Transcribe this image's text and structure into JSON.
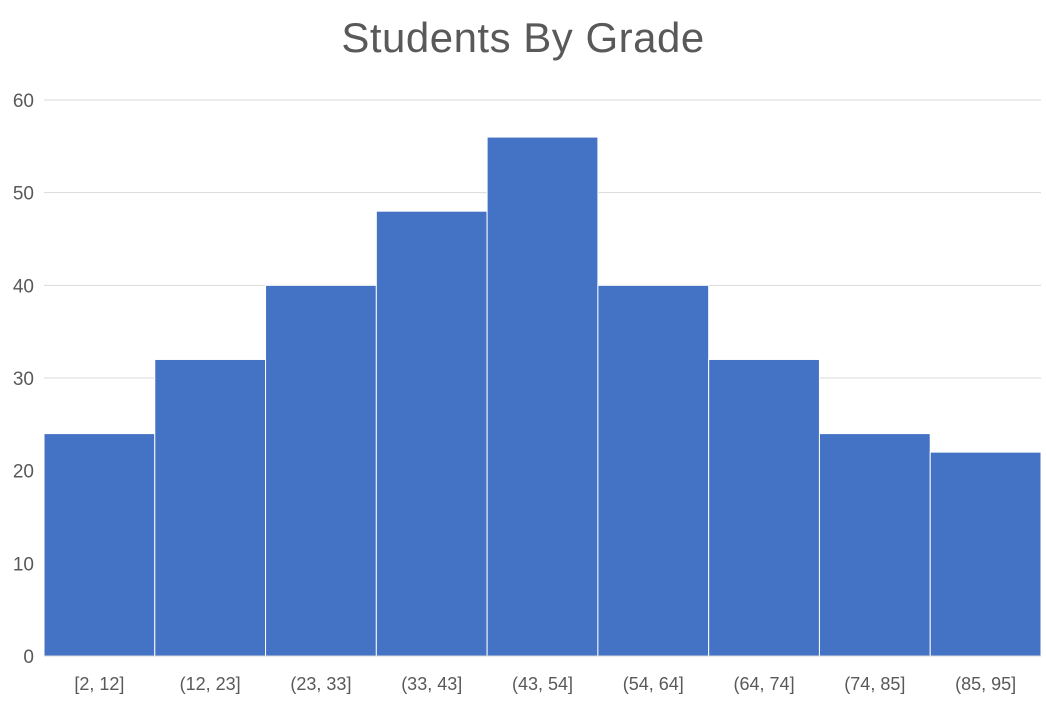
{
  "chart_data": {
    "type": "bar",
    "title": "Students By Grade",
    "xlabel": "",
    "ylabel": "",
    "categories": [
      "[2, 12]",
      "(12, 23]",
      "(23, 33]",
      "(33, 43]",
      "(43, 54]",
      "(54, 64]",
      "(64, 74]",
      "(74, 85]",
      "(85, 95]"
    ],
    "values": [
      24,
      32,
      40,
      48,
      56,
      40,
      32,
      24,
      22
    ],
    "ylim": [
      0,
      60
    ],
    "yticks": [
      0,
      10,
      20,
      30,
      40,
      50,
      60
    ],
    "grid": true,
    "bar_color": "#4472C4",
    "gridline_color": "#D9D9D9",
    "legend": "none"
  }
}
